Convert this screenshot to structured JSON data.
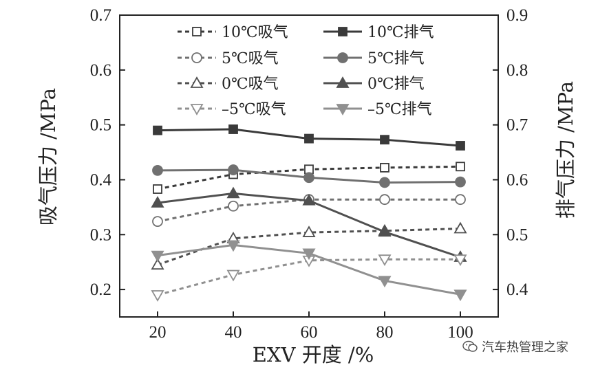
{
  "chart_data": {
    "type": "line",
    "xlabel": "EXV 开度 /%",
    "ylabel_left": "吸气压力 /MPa",
    "ylabel_right": "排气压力 /MPa",
    "x": [
      20,
      40,
      60,
      80,
      100
    ],
    "xticks": [
      "20",
      "40",
      "60",
      "80",
      "100"
    ],
    "xlim": [
      10,
      110
    ],
    "ylim_left": [
      0.15,
      0.7
    ],
    "ylim_right": [
      0.35,
      0.9
    ],
    "yticks_left": [
      "0.2",
      "0.3",
      "0.4",
      "0.5",
      "0.6",
      "0.7"
    ],
    "yticks_right": [
      "0.4",
      "0.5",
      "0.6",
      "0.7",
      "0.8",
      "0.9"
    ],
    "legend_position": "top",
    "series": [
      {
        "name": "10℃吸气",
        "axis": "left",
        "values": [
          0.383,
          0.41,
          0.419,
          0.422,
          0.424
        ],
        "color": "#3a3a3a",
        "style": "dashed",
        "marker": "square-open"
      },
      {
        "name": "10℃排气",
        "axis": "right",
        "values": [
          0.69,
          0.692,
          0.675,
          0.673,
          0.662
        ],
        "color": "#3a3a3a",
        "style": "solid",
        "marker": "square-filled"
      },
      {
        "name": "5℃吸气",
        "axis": "left",
        "values": [
          0.324,
          0.352,
          0.364,
          0.364,
          0.364
        ],
        "color": "#707070",
        "style": "dashed",
        "marker": "circle-open"
      },
      {
        "name": "5℃排气",
        "axis": "right",
        "values": [
          0.617,
          0.618,
          0.604,
          0.595,
          0.596
        ],
        "color": "#707070",
        "style": "solid",
        "marker": "circle-filled"
      },
      {
        "name": "0℃吸气",
        "axis": "left",
        "values": [
          0.245,
          0.293,
          0.304,
          0.307,
          0.311
        ],
        "color": "#505050",
        "style": "dashed",
        "marker": "triangle-up-open"
      },
      {
        "name": "0℃排气",
        "axis": "right",
        "values": [
          0.558,
          0.575,
          0.562,
          0.505,
          0.459
        ],
        "color": "#505050",
        "style": "solid",
        "marker": "triangle-up-filled"
      },
      {
        "name": "-5℃吸气",
        "axis": "left",
        "values": [
          0.19,
          0.227,
          0.253,
          0.255,
          0.255
        ],
        "color": "#909090",
        "style": "dashed",
        "marker": "triangle-down-open"
      },
      {
        "name": "-5℃排气",
        "axis": "right",
        "values": [
          0.462,
          0.481,
          0.466,
          0.416,
          0.391
        ],
        "color": "#909090",
        "style": "solid",
        "marker": "triangle-down-filled"
      }
    ]
  },
  "legend_labels": [
    "10℃吸气",
    "10℃排气",
    "5℃吸气",
    "5℃排气",
    "0℃吸气",
    "0℃排气",
    "–5℃吸气",
    "–5℃排气"
  ],
  "watermark": {
    "text": "汽车热管理之家",
    "icon": "wechat-icon"
  }
}
